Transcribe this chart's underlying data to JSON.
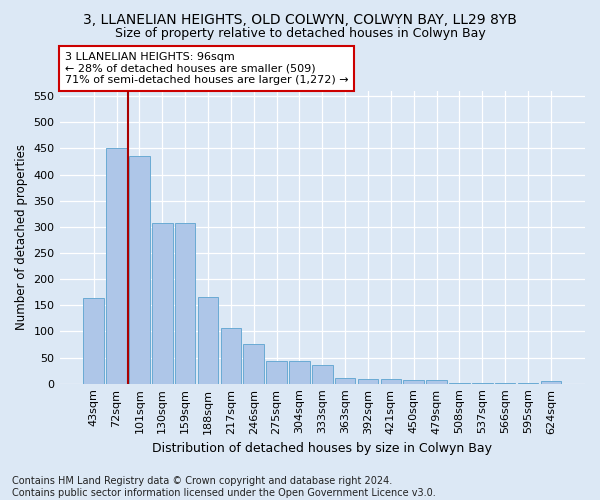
{
  "title": "3, LLANELIAN HEIGHTS, OLD COLWYN, COLWYN BAY, LL29 8YB",
  "subtitle": "Size of property relative to detached houses in Colwyn Bay",
  "xlabel": "Distribution of detached houses by size in Colwyn Bay",
  "ylabel": "Number of detached properties",
  "categories": [
    "43sqm",
    "72sqm",
    "101sqm",
    "130sqm",
    "159sqm",
    "188sqm",
    "217sqm",
    "246sqm",
    "275sqm",
    "304sqm",
    "333sqm",
    "363sqm",
    "392sqm",
    "421sqm",
    "450sqm",
    "479sqm",
    "508sqm",
    "537sqm",
    "566sqm",
    "595sqm",
    "624sqm"
  ],
  "values": [
    163,
    450,
    435,
    307,
    307,
    165,
    107,
    75,
    44,
    44,
    35,
    11,
    8,
    8,
    7,
    7,
    2,
    2,
    2,
    1,
    5
  ],
  "bar_color": "#aec6e8",
  "bar_edge_color": "#6aaad4",
  "vline_x_index": 2,
  "vline_color": "#aa0000",
  "annotation_line1": "3 LLANELIAN HEIGHTS: 96sqm",
  "annotation_line2": "← 28% of detached houses are smaller (509)",
  "annotation_line3": "71% of semi-detached houses are larger (1,272) →",
  "annotation_box_facecolor": "#ffffff",
  "annotation_box_edgecolor": "#cc0000",
  "ylim": [
    0,
    560
  ],
  "yticks": [
    0,
    50,
    100,
    150,
    200,
    250,
    300,
    350,
    400,
    450,
    500,
    550
  ],
  "background_color": "#dce8f5",
  "plot_background_color": "#dce8f5",
  "footer_text": "Contains HM Land Registry data © Crown copyright and database right 2024.\nContains public sector information licensed under the Open Government Licence v3.0.",
  "title_fontsize": 10,
  "subtitle_fontsize": 9,
  "xlabel_fontsize": 9,
  "ylabel_fontsize": 8.5,
  "tick_fontsize": 8,
  "annotation_fontsize": 8,
  "footer_fontsize": 7
}
